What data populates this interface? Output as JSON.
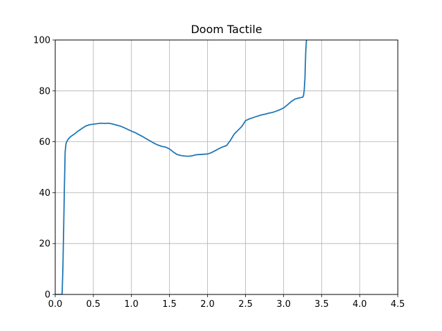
{
  "chart_data": {
    "type": "line",
    "title": "Doom Tactile",
    "xlabel": "",
    "ylabel": "",
    "xlim": [
      0,
      4.5
    ],
    "ylim": [
      0,
      100
    ],
    "xticks": [
      0.0,
      0.5,
      1.0,
      1.5,
      2.0,
      2.5,
      3.0,
      3.5,
      4.0,
      4.5
    ],
    "xtick_labels": [
      "0.0",
      "0.5",
      "1.0",
      "1.5",
      "2.0",
      "2.5",
      "3.0",
      "3.5",
      "4.0",
      "4.5"
    ],
    "yticks": [
      0,
      20,
      40,
      60,
      80,
      100
    ],
    "ytick_labels": [
      "0",
      "20",
      "40",
      "60",
      "80",
      "100"
    ],
    "grid": true,
    "series": [
      {
        "color": "#1f77b4",
        "x": [
          0.0,
          0.09,
          0.1,
          0.11,
          0.12,
          0.13,
          0.14,
          0.15,
          0.17,
          0.2,
          0.25,
          0.3,
          0.35,
          0.4,
          0.45,
          0.5,
          0.55,
          0.6,
          0.65,
          0.7,
          0.75,
          0.8,
          0.85,
          0.9,
          0.95,
          1.0,
          1.05,
          1.1,
          1.15,
          1.2,
          1.25,
          1.3,
          1.35,
          1.4,
          1.45,
          1.5,
          1.55,
          1.6,
          1.65,
          1.7,
          1.75,
          1.8,
          1.85,
          1.9,
          1.95,
          2.0,
          2.05,
          2.1,
          2.15,
          2.2,
          2.25,
          2.3,
          2.35,
          2.4,
          2.45,
          2.5,
          2.55,
          2.6,
          2.65,
          2.7,
          2.75,
          2.8,
          2.85,
          2.9,
          2.95,
          3.0,
          3.05,
          3.1,
          3.15,
          3.2,
          3.25,
          3.26,
          3.27,
          3.28,
          3.29,
          3.3
        ],
        "y": [
          0.0,
          0.0,
          10.0,
          25.0,
          42.0,
          56.0,
          59.0,
          60.0,
          61.0,
          62.0,
          63.0,
          64.2,
          65.2,
          66.2,
          66.7,
          66.9,
          67.1,
          67.3,
          67.2,
          67.3,
          67.0,
          66.6,
          66.2,
          65.6,
          64.9,
          64.2,
          63.6,
          62.8,
          62.0,
          61.1,
          60.3,
          59.4,
          58.7,
          58.2,
          57.9,
          57.2,
          56.0,
          55.0,
          54.6,
          54.4,
          54.3,
          54.5,
          54.9,
          55.0,
          55.1,
          55.2,
          55.7,
          56.5,
          57.3,
          58.0,
          58.5,
          60.5,
          63.0,
          64.5,
          66.0,
          68.3,
          69.0,
          69.5,
          70.0,
          70.5,
          70.8,
          71.2,
          71.5,
          72.0,
          72.6,
          73.3,
          74.5,
          75.8,
          76.8,
          77.2,
          77.5,
          78.0,
          80.0,
          85.0,
          95.0,
          100.0
        ]
      }
    ]
  }
}
